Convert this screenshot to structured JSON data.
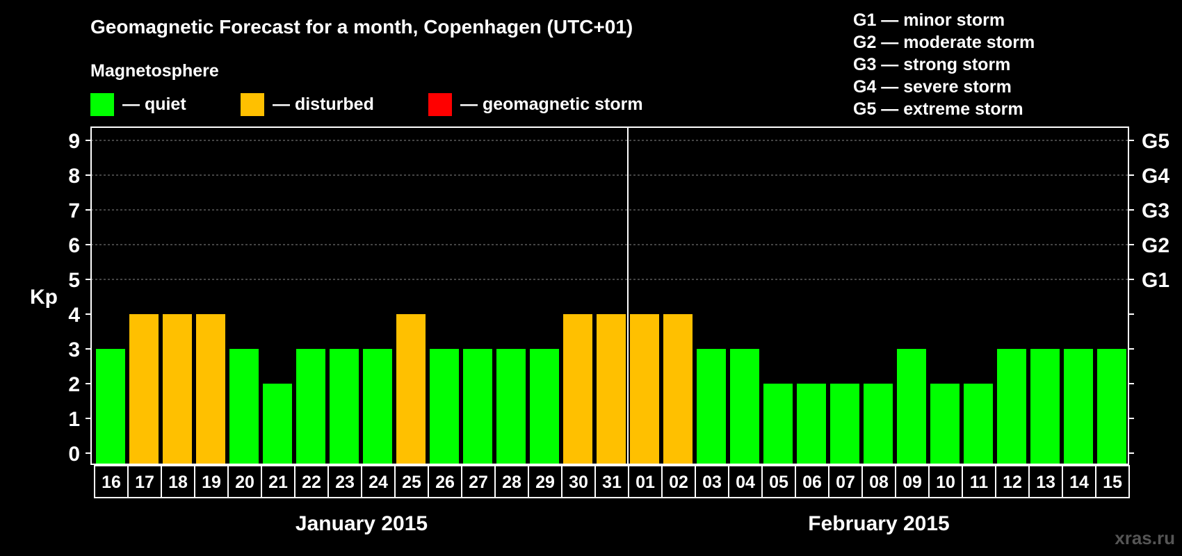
{
  "chart_data": {
    "type": "bar",
    "title": "Geomagnetic Forecast for a month, Copenhagen (UTC+01)",
    "legend": {
      "heading": "Magnetosphere",
      "items": [
        {
          "label": "— quiet",
          "color": "#00ff00"
        },
        {
          "label": "— disturbed",
          "color": "#ffc000"
        },
        {
          "label": "— geomagnetic storm",
          "color": "#ff0000"
        }
      ]
    },
    "storm_scale": [
      "G1 — minor storm",
      "G2 — moderate storm",
      "G3 — strong storm",
      "G4 — severe storm",
      "G5 — extreme storm"
    ],
    "ylabel": "Kp",
    "ylim": [
      0,
      9
    ],
    "y_ticks": [
      "0",
      "1",
      "2",
      "3",
      "4",
      "5",
      "6",
      "7",
      "8",
      "9"
    ],
    "right_ticks": [
      {
        "kp": 5,
        "label": "G1"
      },
      {
        "kp": 6,
        "label": "G2"
      },
      {
        "kp": 7,
        "label": "G3"
      },
      {
        "kp": 8,
        "label": "G4"
      },
      {
        "kp": 9,
        "label": "G5"
      }
    ],
    "grid": true,
    "categories": [
      "16",
      "17",
      "18",
      "19",
      "20",
      "21",
      "22",
      "23",
      "24",
      "25",
      "26",
      "27",
      "28",
      "29",
      "30",
      "31",
      "01",
      "02",
      "03",
      "04",
      "05",
      "06",
      "07",
      "08",
      "09",
      "10",
      "11",
      "12",
      "13",
      "14",
      "15"
    ],
    "values": [
      3,
      4,
      4,
      4,
      3,
      2,
      3,
      3,
      3,
      4,
      3,
      3,
      3,
      3,
      4,
      4,
      4,
      4,
      3,
      3,
      2,
      2,
      2,
      2,
      3,
      2,
      2,
      3,
      3,
      3,
      3
    ],
    "months": [
      {
        "label": "January 2015",
        "count": 16
      },
      {
        "label": "February 2015",
        "count": 15
      }
    ],
    "colors": {
      "quiet": "#00ff00",
      "disturbed": "#ffc000",
      "storm": "#ff0000"
    }
  },
  "watermark": "xras.ru"
}
